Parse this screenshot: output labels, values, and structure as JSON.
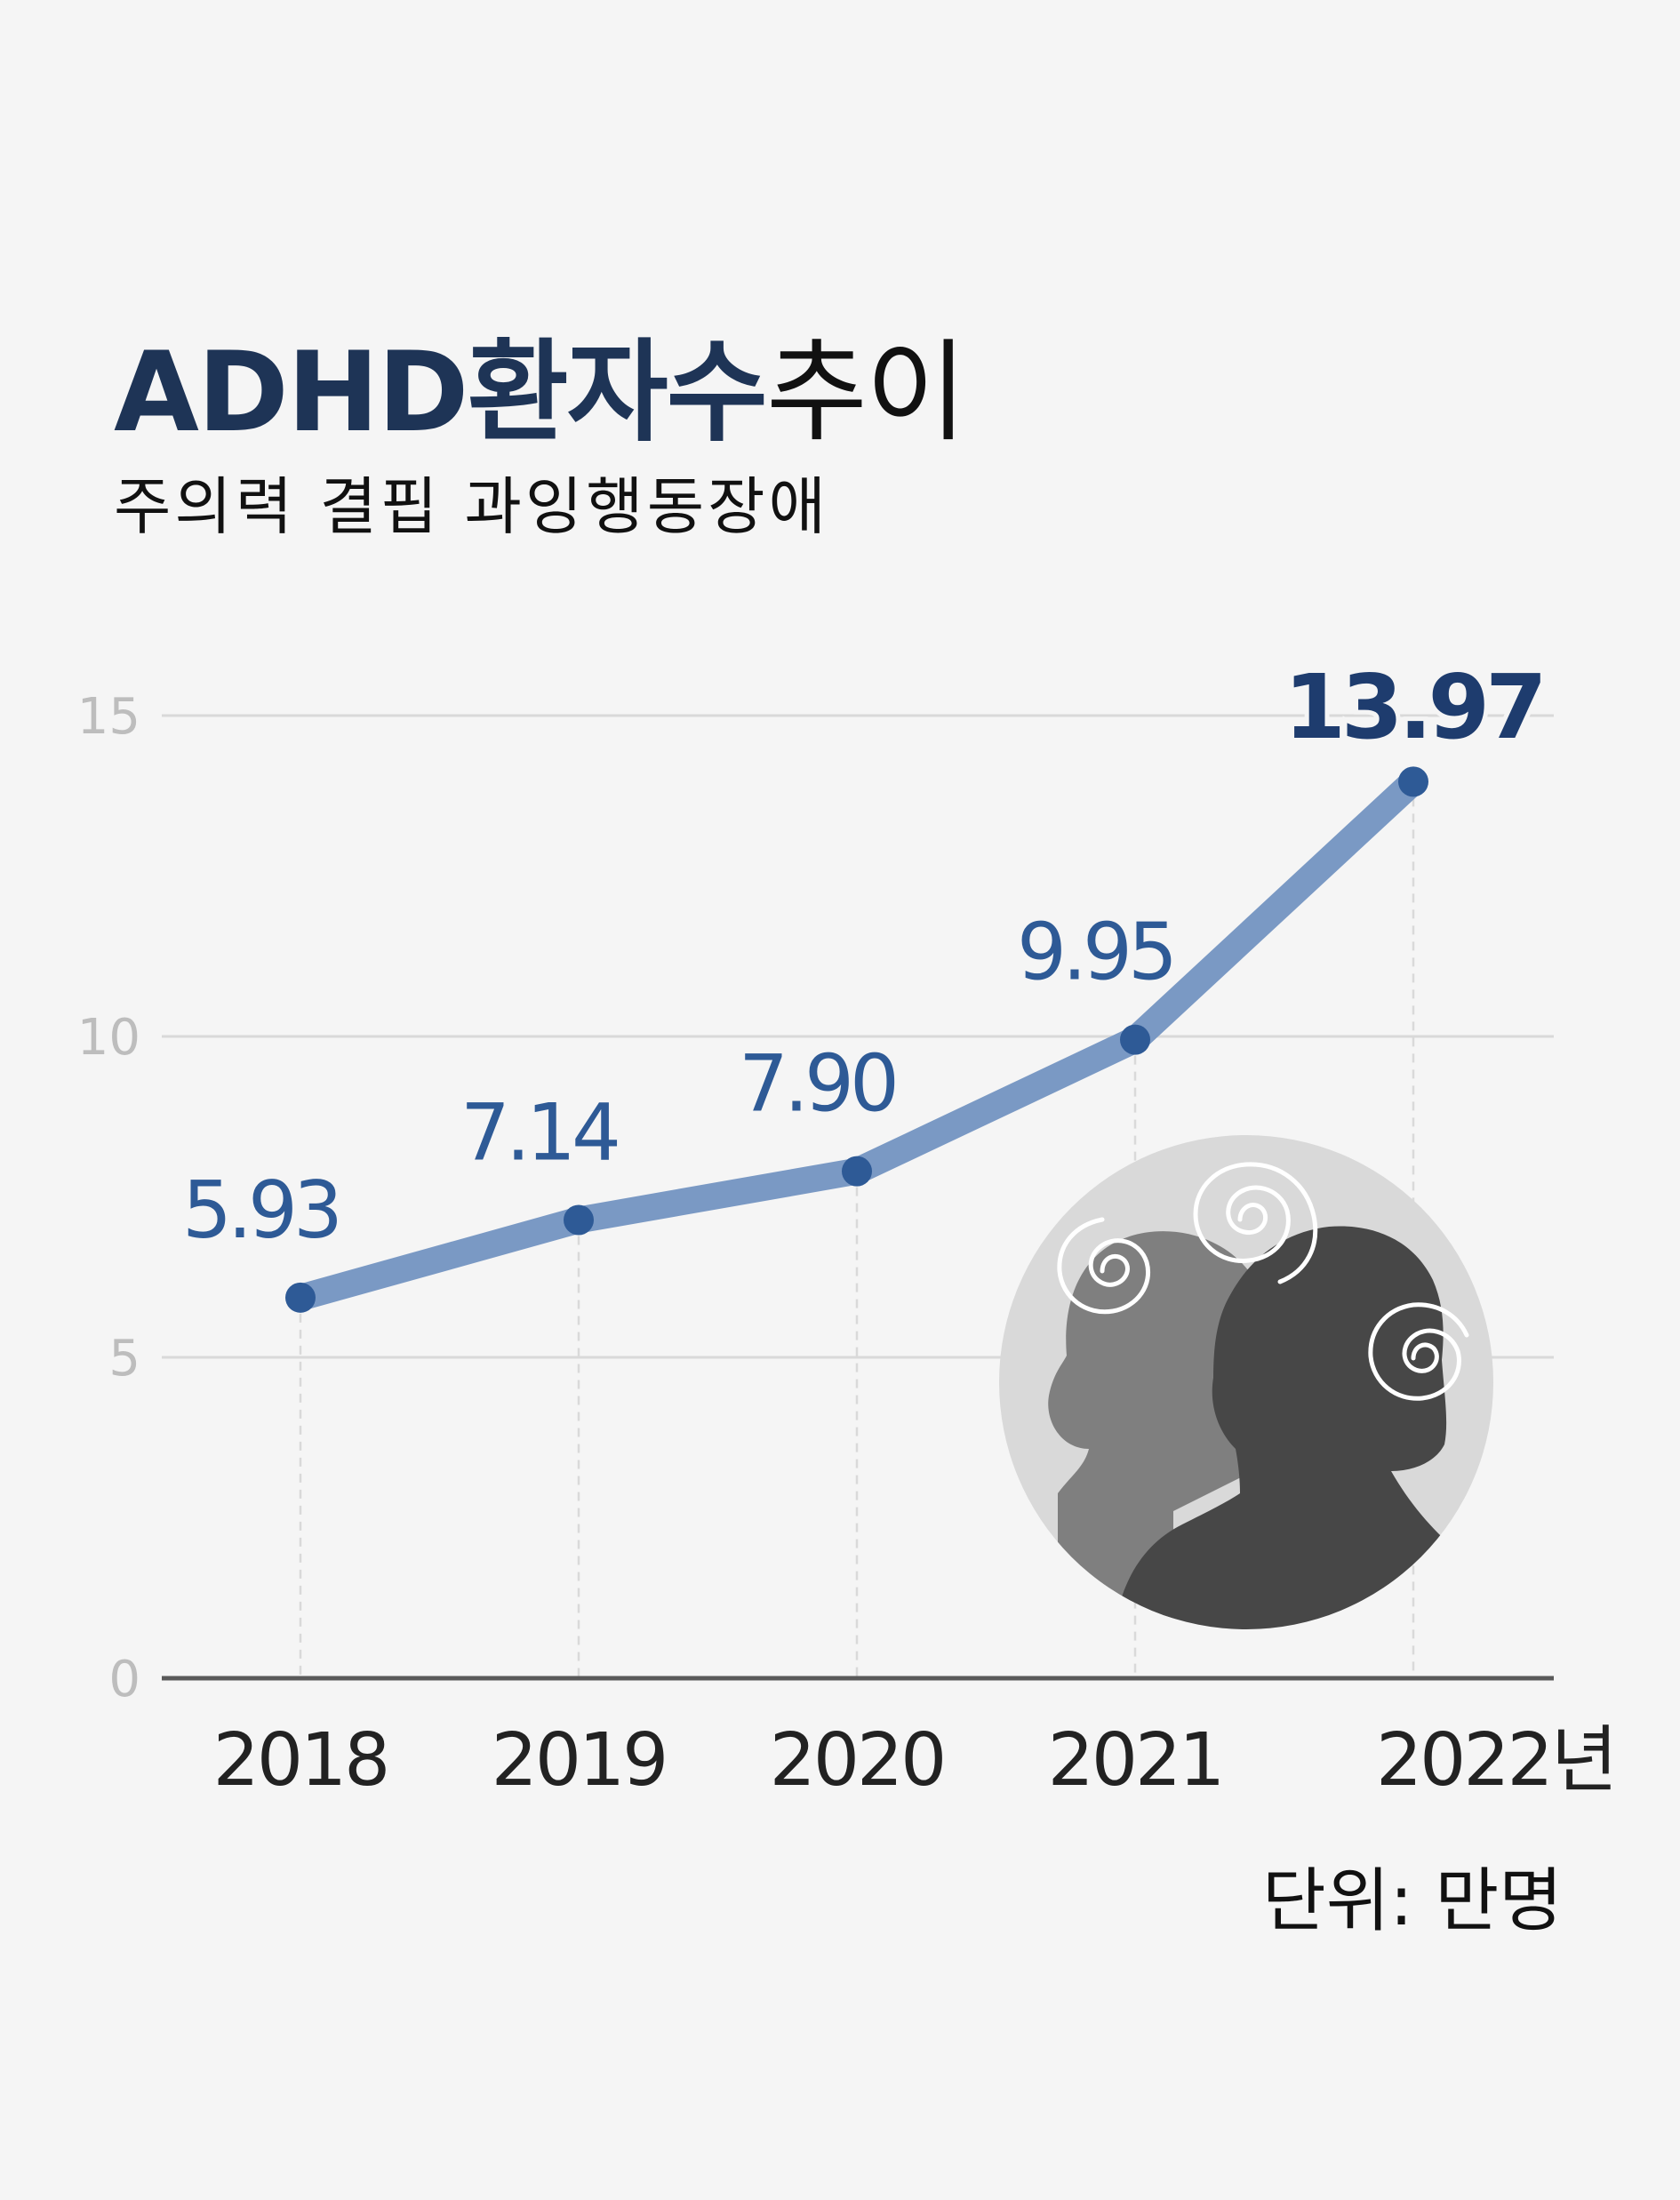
{
  "header": {
    "title_bold": "ADHD환자수",
    "title_light": "추이",
    "subtitle": "주의력 결핍 과잉행동장애"
  },
  "unit_label": "단위: 만명",
  "colors": {
    "background": "#f5f5f5",
    "title": "#1e3456",
    "line": "#7a99c4",
    "marker": "#2e5a96",
    "value_label": "#2e5a96",
    "highlight_label": "#1e3c6e",
    "grid": "#d9d9d9",
    "tick_label": "#bdbdbd",
    "axis": "#595959"
  },
  "chart_data": {
    "type": "line",
    "title": "ADHD환자수추이",
    "subtitle": "주의력 결핍 과잉행동장애",
    "categories": [
      "2018",
      "2019",
      "2020",
      "2021",
      "2022"
    ],
    "category_labels": [
      "2018",
      "2019",
      "2020",
      "2021",
      "2022년"
    ],
    "series": [
      {
        "values": [
          5.93,
          7.14,
          7.9,
          9.95,
          13.97
        ],
        "labels": [
          "5.93",
          "7.14",
          "7.90",
          "9.95",
          "13.97"
        ]
      }
    ],
    "ylim": [
      0,
      15
    ],
    "yticks": [
      0,
      5,
      10,
      15
    ],
    "unit": "만명",
    "grid": true,
    "legend": "none",
    "illustration": "two-head-silhouettes-with-swirls-icon"
  }
}
